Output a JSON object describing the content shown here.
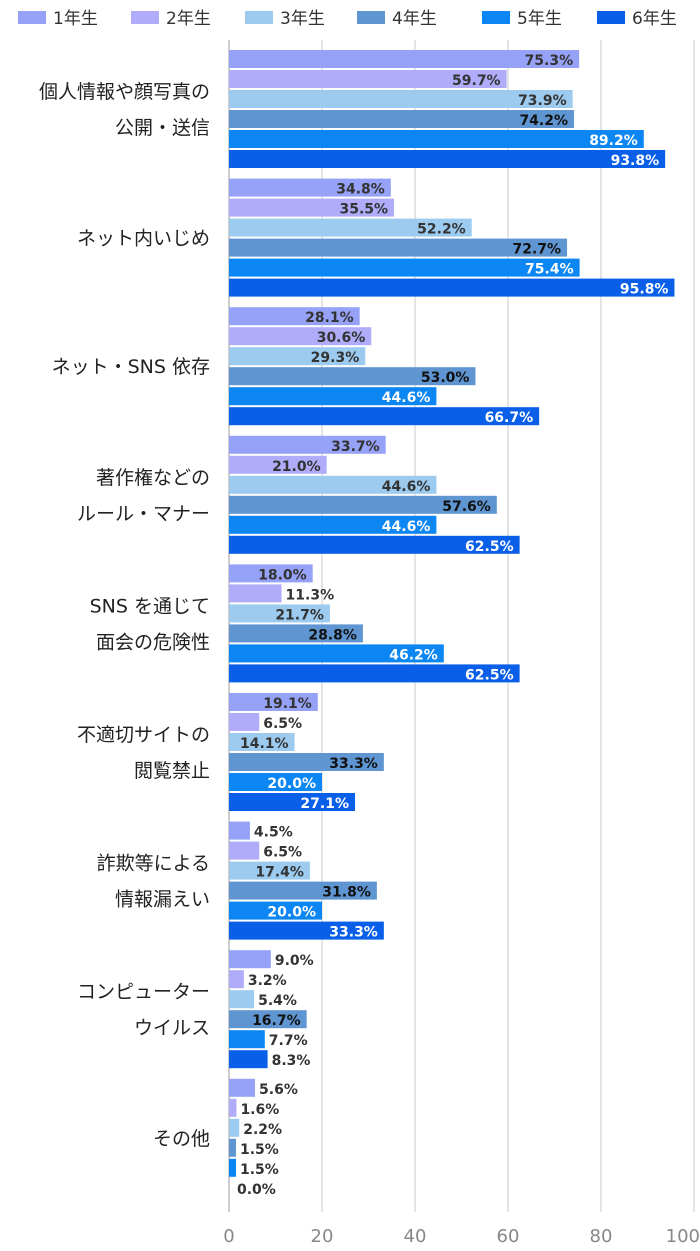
{
  "chart_data": {
    "type": "bar",
    "orientation": "horizontal",
    "title": "",
    "xlabel": "",
    "ylabel": "",
    "xlim": [
      0,
      100
    ],
    "x_ticks": [
      0,
      20,
      40,
      60,
      80,
      100
    ],
    "grid": "vertical",
    "legend_position": "top",
    "categories": [
      [
        "個人情報や顔写真の",
        "公開・送信"
      ],
      [
        "ネット内いじめ"
      ],
      [
        "ネット・SNS 依存"
      ],
      [
        "著作権などの",
        "ルール・マナー"
      ],
      [
        "SNS を通じて",
        "面会の危険性"
      ],
      [
        "不適切サイトの",
        "閲覧禁止"
      ],
      [
        "詐欺等による",
        "情報漏えい"
      ],
      [
        "コンピューター",
        "ウイルス"
      ],
      [
        "その他"
      ]
    ],
    "series": [
      {
        "name": "1年生",
        "color": "#96a2f7",
        "label_color": "#333333",
        "values": [
          75.3,
          34.8,
          28.1,
          33.7,
          18.0,
          19.1,
          4.5,
          9.0,
          5.6
        ],
        "labels": [
          "75.3%",
          "34.8%",
          "28.1%",
          "33.7%",
          "18.0%",
          "19.1%",
          "4.5%",
          "9.0%",
          "5.6%"
        ]
      },
      {
        "name": "2年生",
        "color": "#b0acfa",
        "label_color": "#333333",
        "values": [
          59.7,
          35.5,
          30.6,
          21.0,
          11.3,
          6.5,
          6.5,
          3.2,
          1.6
        ],
        "labels": [
          "59.7%",
          "35.5%",
          "30.6%",
          "21.0%",
          "11.3%",
          "6.5%",
          "6.5%",
          "3.2%",
          "1.6%"
        ]
      },
      {
        "name": "3年生",
        "color": "#9ccbef",
        "label_color": "#333333",
        "values": [
          73.9,
          52.2,
          29.3,
          44.6,
          21.7,
          14.1,
          17.4,
          5.4,
          2.2
        ],
        "labels": [
          "73.9%",
          "52.2%",
          "29.3%",
          "44.6%",
          "21.7%",
          "14.1%",
          "17.4%",
          "5.4%",
          "2.2%"
        ]
      },
      {
        "name": "4年生",
        "color": "#5f95d1",
        "label_color": "#111111",
        "values": [
          74.2,
          72.7,
          53.0,
          57.6,
          28.8,
          33.3,
          31.8,
          16.7,
          1.5
        ],
        "labels": [
          "74.2%",
          "72.7%",
          "53.0%",
          "57.6%",
          "28.8%",
          "33.3%",
          "31.8%",
          "16.7%",
          "1.5%"
        ]
      },
      {
        "name": "5年生",
        "color": "#0b86f3",
        "label_color": "#ffffff",
        "values": [
          89.2,
          75.4,
          44.6,
          44.6,
          46.2,
          20.0,
          20.0,
          7.7,
          1.5
        ],
        "labels": [
          "89.2%",
          "75.4%",
          "44.6%",
          "44.6%",
          "46.2%",
          "20.0%",
          "20.0%",
          "7.7%",
          "1.5%"
        ]
      },
      {
        "name": "6年生",
        "color": "#0a5fe8",
        "label_color": "#ffffff",
        "values": [
          93.8,
          95.8,
          66.7,
          62.5,
          62.5,
          27.1,
          33.3,
          8.3,
          0.0
        ],
        "labels": [
          "93.8%",
          "95.8%",
          "66.7%",
          "62.5%",
          "62.5%",
          "27.1%",
          "33.3%",
          "8.3%",
          "0.0%"
        ]
      }
    ]
  }
}
